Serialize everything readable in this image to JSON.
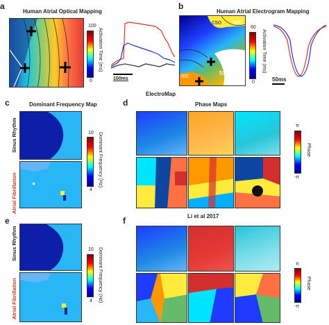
{
  "panels": {
    "a": {
      "letter": "a",
      "title": "Human Atrial Optical Mapping",
      "cbar_max": "100",
      "cbar_min": "0",
      "cbar_label": "Activation Time (ms)",
      "scale": "100ms"
    },
    "b": {
      "letter": "b",
      "title": "Human Atrial Electrogram Mapping",
      "cbar_max": "60",
      "cbar_min": "0",
      "cbar_label": "Activation Time (ms)",
      "scale": "50ms",
      "labels": {
        "cso": "cso",
        "svc": "svc",
        "ivc": "ivc",
        "fossa": "fossa"
      }
    },
    "section_electromap": "ElectroMap",
    "c": {
      "letter": "c",
      "title": "Dominant Frequency Map",
      "cbar_max": "10",
      "cbar_min": "4",
      "cbar_label": "Dominant Frequency (Hz)",
      "row1": "Sinus Rhythm",
      "row2": "Atrial Fibrillation"
    },
    "d": {
      "letter": "d",
      "title": "Phase Maps",
      "cbar_max": "π",
      "cbar_min": "-π",
      "cbar_label": "Phase"
    },
    "section_li": "Li et al 2017",
    "e": {
      "letter": "e",
      "cbar_max": "10",
      "cbar_min": "4",
      "cbar_label": "Dominant Frequency (Hz)",
      "row1": "Sinus Rhythm",
      "row2": "Atrial Fibrillation"
    },
    "f": {
      "letter": "f",
      "cbar_max": "π",
      "cbar_min": "-π",
      "cbar_label": "Phase"
    }
  },
  "colors": {
    "row_red": "#c0392b",
    "jet": [
      "#00008f",
      "#0000ff",
      "#00ffff",
      "#ffff00",
      "#ff0000",
      "#800000"
    ]
  }
}
